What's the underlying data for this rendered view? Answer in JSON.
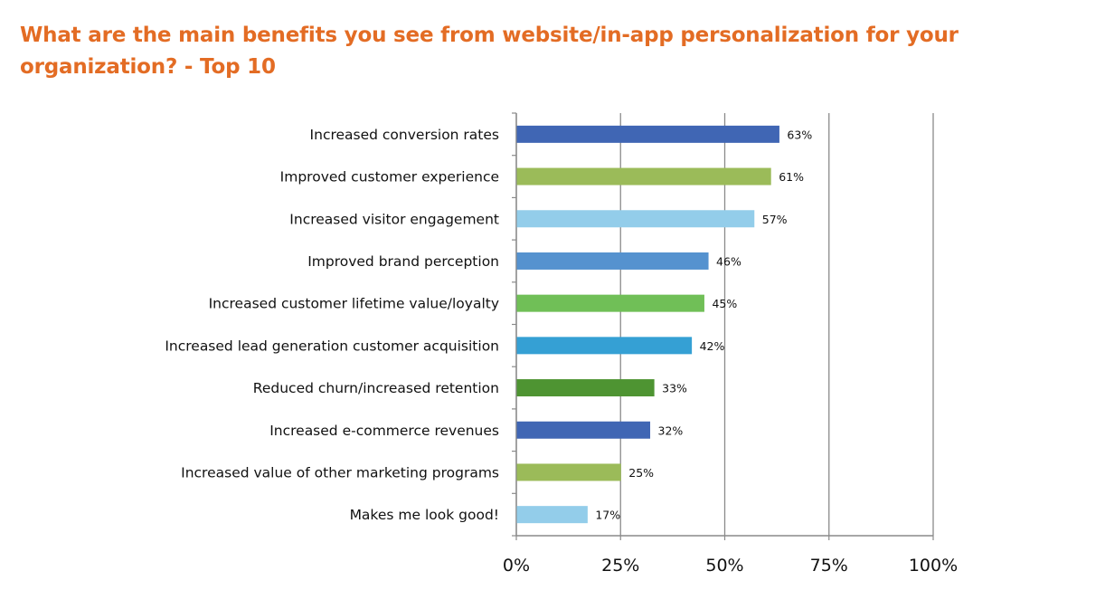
{
  "chart_data": {
    "type": "bar",
    "orientation": "horizontal",
    "title": "What are the main benefits you see from website/in-app personalization for your organization? - Top 10",
    "xlabel": "",
    "ylabel": "",
    "xlim": [
      0,
      100
    ],
    "x_ticks": [
      0,
      25,
      50,
      75,
      100
    ],
    "x_tick_labels": [
      "0%",
      "25%",
      "50%",
      "75%",
      "100%"
    ],
    "grid": true,
    "categories": [
      "Increased conversion rates",
      "Improved customer experience",
      "Increased visitor engagement",
      "Improved brand perception",
      "Increased customer lifetime value/loyalty",
      "Increased lead generation customer acquisition",
      "Reduced churn/increased retention",
      "Increased e-commerce revenues",
      "Increased value of other marketing programs",
      "Makes me look good!"
    ],
    "values": [
      63,
      61,
      57,
      46,
      45,
      42,
      33,
      32,
      25,
      17
    ],
    "value_labels": [
      "63%",
      "61%",
      "57%",
      "46%",
      "45%",
      "42%",
      "33%",
      "32%",
      "25%",
      "17%"
    ],
    "bar_colors": [
      "#4066B4",
      "#9BBB59",
      "#93CDEA",
      "#5592CF",
      "#70BF57",
      "#35A0D4",
      "#4E9432",
      "#4066B4",
      "#9BBB59",
      "#93CDEA"
    ]
  },
  "colors": {
    "title": "#E36C24",
    "grid": "#8A8A8A",
    "axis": "#8A8A8A"
  }
}
